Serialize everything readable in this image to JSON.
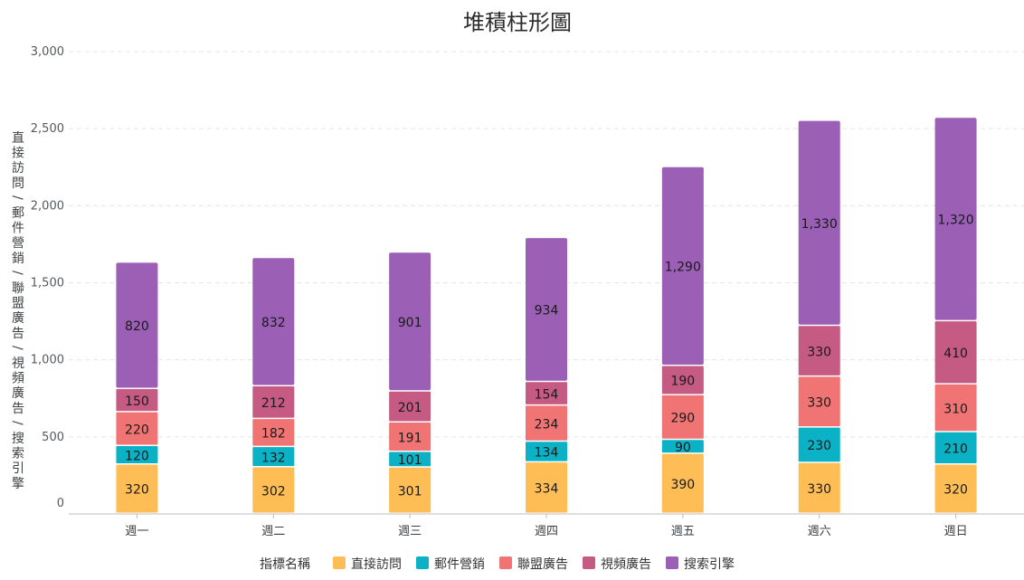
{
  "chart_data": {
    "type": "bar",
    "stacked": true,
    "title": "堆積柱形圖",
    "ylabel": "直接訪問/郵件營銷/聯盟廣告/視頻廣告/搜索引擎",
    "xlabel": "",
    "categories": [
      "週一",
      "週二",
      "週三",
      "週四",
      "週五",
      "週六",
      "週日"
    ],
    "ylim": [
      0,
      3000
    ],
    "yticks": [
      0,
      500,
      1000,
      1500,
      2000,
      2500,
      3000
    ],
    "ytick_labels": [
      "0",
      "500",
      "1,000",
      "1,500",
      "2,000",
      "2,500",
      "3,000"
    ],
    "grid": true,
    "legend_title": "指標名稱",
    "legend_position": "bottom",
    "series": [
      {
        "name": "直接訪問",
        "color": "#FFBE55",
        "values": [
          320,
          302,
          301,
          334,
          390,
          330,
          320
        ],
        "labels": [
          "320",
          "302",
          "301",
          "334",
          "390",
          "330",
          "320"
        ]
      },
      {
        "name": "郵件營銷",
        "color": "#0BB2C6",
        "values": [
          120,
          132,
          101,
          134,
          90,
          230,
          210
        ],
        "labels": [
          "120",
          "132",
          "101",
          "134",
          "90",
          "230",
          "210"
        ]
      },
      {
        "name": "聯盟廣告",
        "color": "#F07474",
        "values": [
          220,
          182,
          191,
          234,
          290,
          330,
          310
        ],
        "labels": [
          "220",
          "182",
          "191",
          "234",
          "290",
          "330",
          "310"
        ]
      },
      {
        "name": "視頻廣告",
        "color": "#C55A82",
        "values": [
          150,
          212,
          201,
          154,
          190,
          330,
          410
        ],
        "labels": [
          "150",
          "212",
          "201",
          "154",
          "190",
          "330",
          "410"
        ]
      },
      {
        "name": "搜索引擎",
        "color": "#9B5FB5",
        "values": [
          820,
          832,
          901,
          934,
          1290,
          1330,
          1320
        ],
        "labels": [
          "820",
          "832",
          "901",
          "934",
          "1,290",
          "1,330",
          "1,320"
        ]
      }
    ]
  }
}
